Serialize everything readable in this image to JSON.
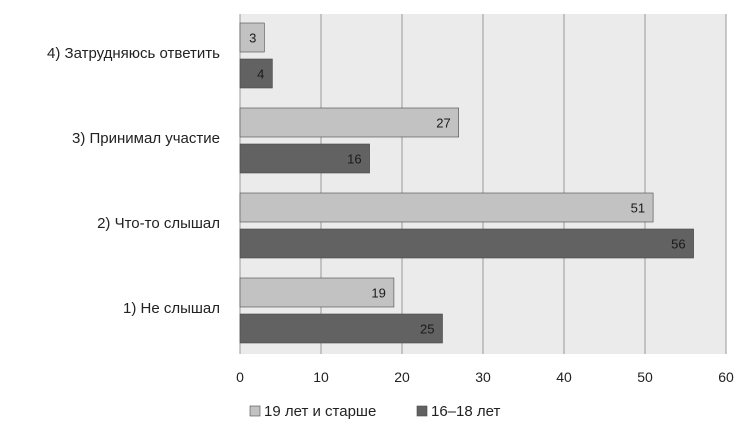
{
  "chart_data": {
    "type": "bar",
    "orientation": "horizontal",
    "categories": [
      "4)   Затрудняюсь ответить",
      "3)   Принимал участие",
      "2)   Что-то слышал",
      "1)   Не слышал"
    ],
    "series": [
      {
        "name": "19 лет и старше",
        "values": [
          3,
          27,
          51,
          19
        ],
        "color": "#c2c2c2"
      },
      {
        "name": "16–18 лет",
        "values": [
          4,
          16,
          56,
          25
        ],
        "color": "#626262"
      }
    ],
    "xlim": [
      0,
      60
    ],
    "xticks": [
      "0",
      "10",
      "20",
      "30",
      "40",
      "50",
      "60"
    ],
    "grid": true,
    "legend_position": "bottom",
    "plot_background": "#ebebeb"
  }
}
